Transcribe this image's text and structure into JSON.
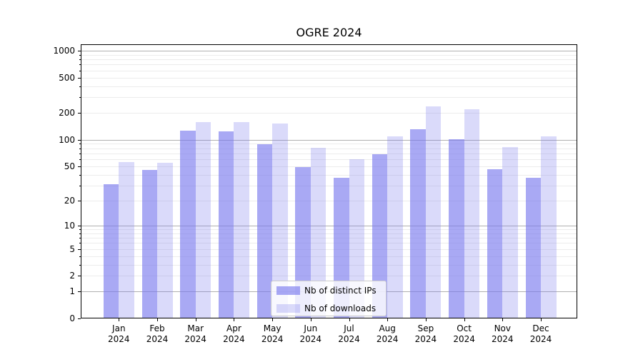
{
  "chart_data": {
    "type": "bar",
    "title": "OGRE 2024",
    "categories": [
      {
        "month": "Jan",
        "year": "2024"
      },
      {
        "month": "Feb",
        "year": "2024"
      },
      {
        "month": "Mar",
        "year": "2024"
      },
      {
        "month": "Apr",
        "year": "2024"
      },
      {
        "month": "May",
        "year": "2024"
      },
      {
        "month": "Jun",
        "year": "2024"
      },
      {
        "month": "Jul",
        "year": "2024"
      },
      {
        "month": "Aug",
        "year": "2024"
      },
      {
        "month": "Sep",
        "year": "2024"
      },
      {
        "month": "Oct",
        "year": "2024"
      },
      {
        "month": "Nov",
        "year": "2024"
      },
      {
        "month": "Dec",
        "year": "2024"
      }
    ],
    "series": [
      {
        "name": "Nb of distinct IPs",
        "color": "rgba(119,119,238,0.63)",
        "values": [
          31,
          45,
          126,
          125,
          89,
          49,
          37,
          68,
          132,
          101,
          46,
          37
        ]
      },
      {
        "name": "Nb of downloads",
        "color": "rgba(119,119,238,0.27)",
        "values": [
          56,
          55,
          159,
          157,
          152,
          81,
          60,
          108,
          237,
          221,
          82,
          108
        ]
      }
    ],
    "y_scale": "log1p",
    "ylim": [
      0,
      1184
    ],
    "yticks": [
      0,
      1,
      2,
      5,
      10,
      20,
      50,
      100,
      200,
      500,
      1000
    ],
    "xlabel": "",
    "ylabel": "",
    "grid": "on",
    "legend_position": "lower center"
  }
}
